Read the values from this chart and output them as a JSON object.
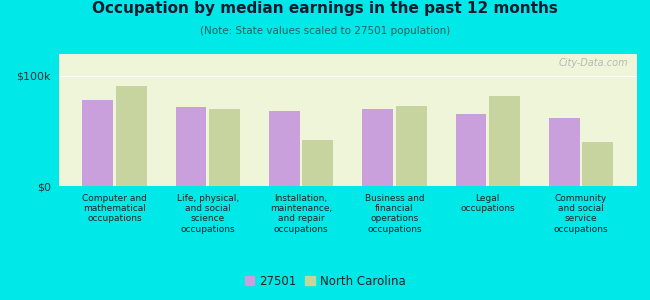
{
  "title": "Occupation by median earnings in the past 12 months",
  "subtitle": "(Note: State values scaled to 27501 population)",
  "categories": [
    "Computer and\nmathematical\noccupations",
    "Life, physical,\nand social\nscience\noccupations",
    "Installation,\nmaintenance,\nand repair\noccupations",
    "Business and\nfinancial\noperations\noccupations",
    "Legal\noccupations",
    "Community\nand social\nservice\noccupations"
  ],
  "values_27501": [
    78000,
    72000,
    68000,
    70000,
    65000,
    62000
  ],
  "values_nc": [
    91000,
    70000,
    42000,
    73000,
    82000,
    40000
  ],
  "color_27501": "#c9a0dc",
  "color_nc": "#c8d4a0",
  "ylim": [
    0,
    120000
  ],
  "yticks": [
    0,
    100000
  ],
  "ytick_labels": [
    "$0",
    "$100k"
  ],
  "legend_labels": [
    "27501",
    "North Carolina"
  ],
  "background_color": "#eef5d8",
  "outer_background": "#00e8e8",
  "title_color": "#1a1a2e",
  "subtitle_color": "#2a6060",
  "watermark": "City-Data.com"
}
